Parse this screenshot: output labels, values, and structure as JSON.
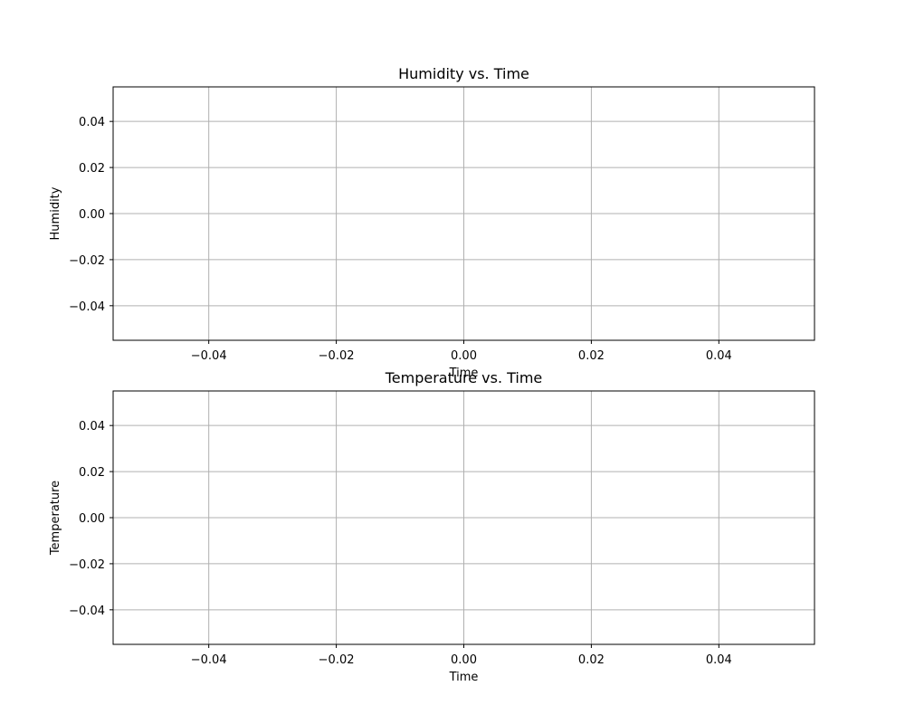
{
  "colors": {
    "grid": "#b0b0b0",
    "axes": "#000000",
    "background": "#ffffff"
  },
  "chart_data": [
    {
      "type": "line",
      "title": "Humidity vs. Time",
      "xlabel": "Time",
      "ylabel": "Humidity",
      "xlim": [
        -0.055,
        0.055
      ],
      "ylim": [
        -0.055,
        0.055
      ],
      "xticks": [
        -0.04,
        -0.02,
        0.0,
        0.02,
        0.04
      ],
      "xtick_labels": [
        "−0.04",
        "−0.02",
        "0.00",
        "0.02",
        "0.04"
      ],
      "yticks": [
        -0.04,
        -0.02,
        0.0,
        0.02,
        0.04
      ],
      "ytick_labels": [
        "−0.04",
        "−0.02",
        "0.00",
        "0.02",
        "0.04"
      ],
      "grid": true,
      "series": []
    },
    {
      "type": "line",
      "title": "Temperature vs. Time",
      "xlabel": "Time",
      "ylabel": "Temperature",
      "xlim": [
        -0.055,
        0.055
      ],
      "ylim": [
        -0.055,
        0.055
      ],
      "xticks": [
        -0.04,
        -0.02,
        0.0,
        0.02,
        0.04
      ],
      "xtick_labels": [
        "−0.04",
        "−0.02",
        "0.00",
        "0.02",
        "0.04"
      ],
      "yticks": [
        -0.04,
        -0.02,
        0.0,
        0.02,
        0.04
      ],
      "ytick_labels": [
        "−0.04",
        "−0.02",
        "0.00",
        "0.02",
        "0.04"
      ],
      "grid": true,
      "series": []
    }
  ]
}
